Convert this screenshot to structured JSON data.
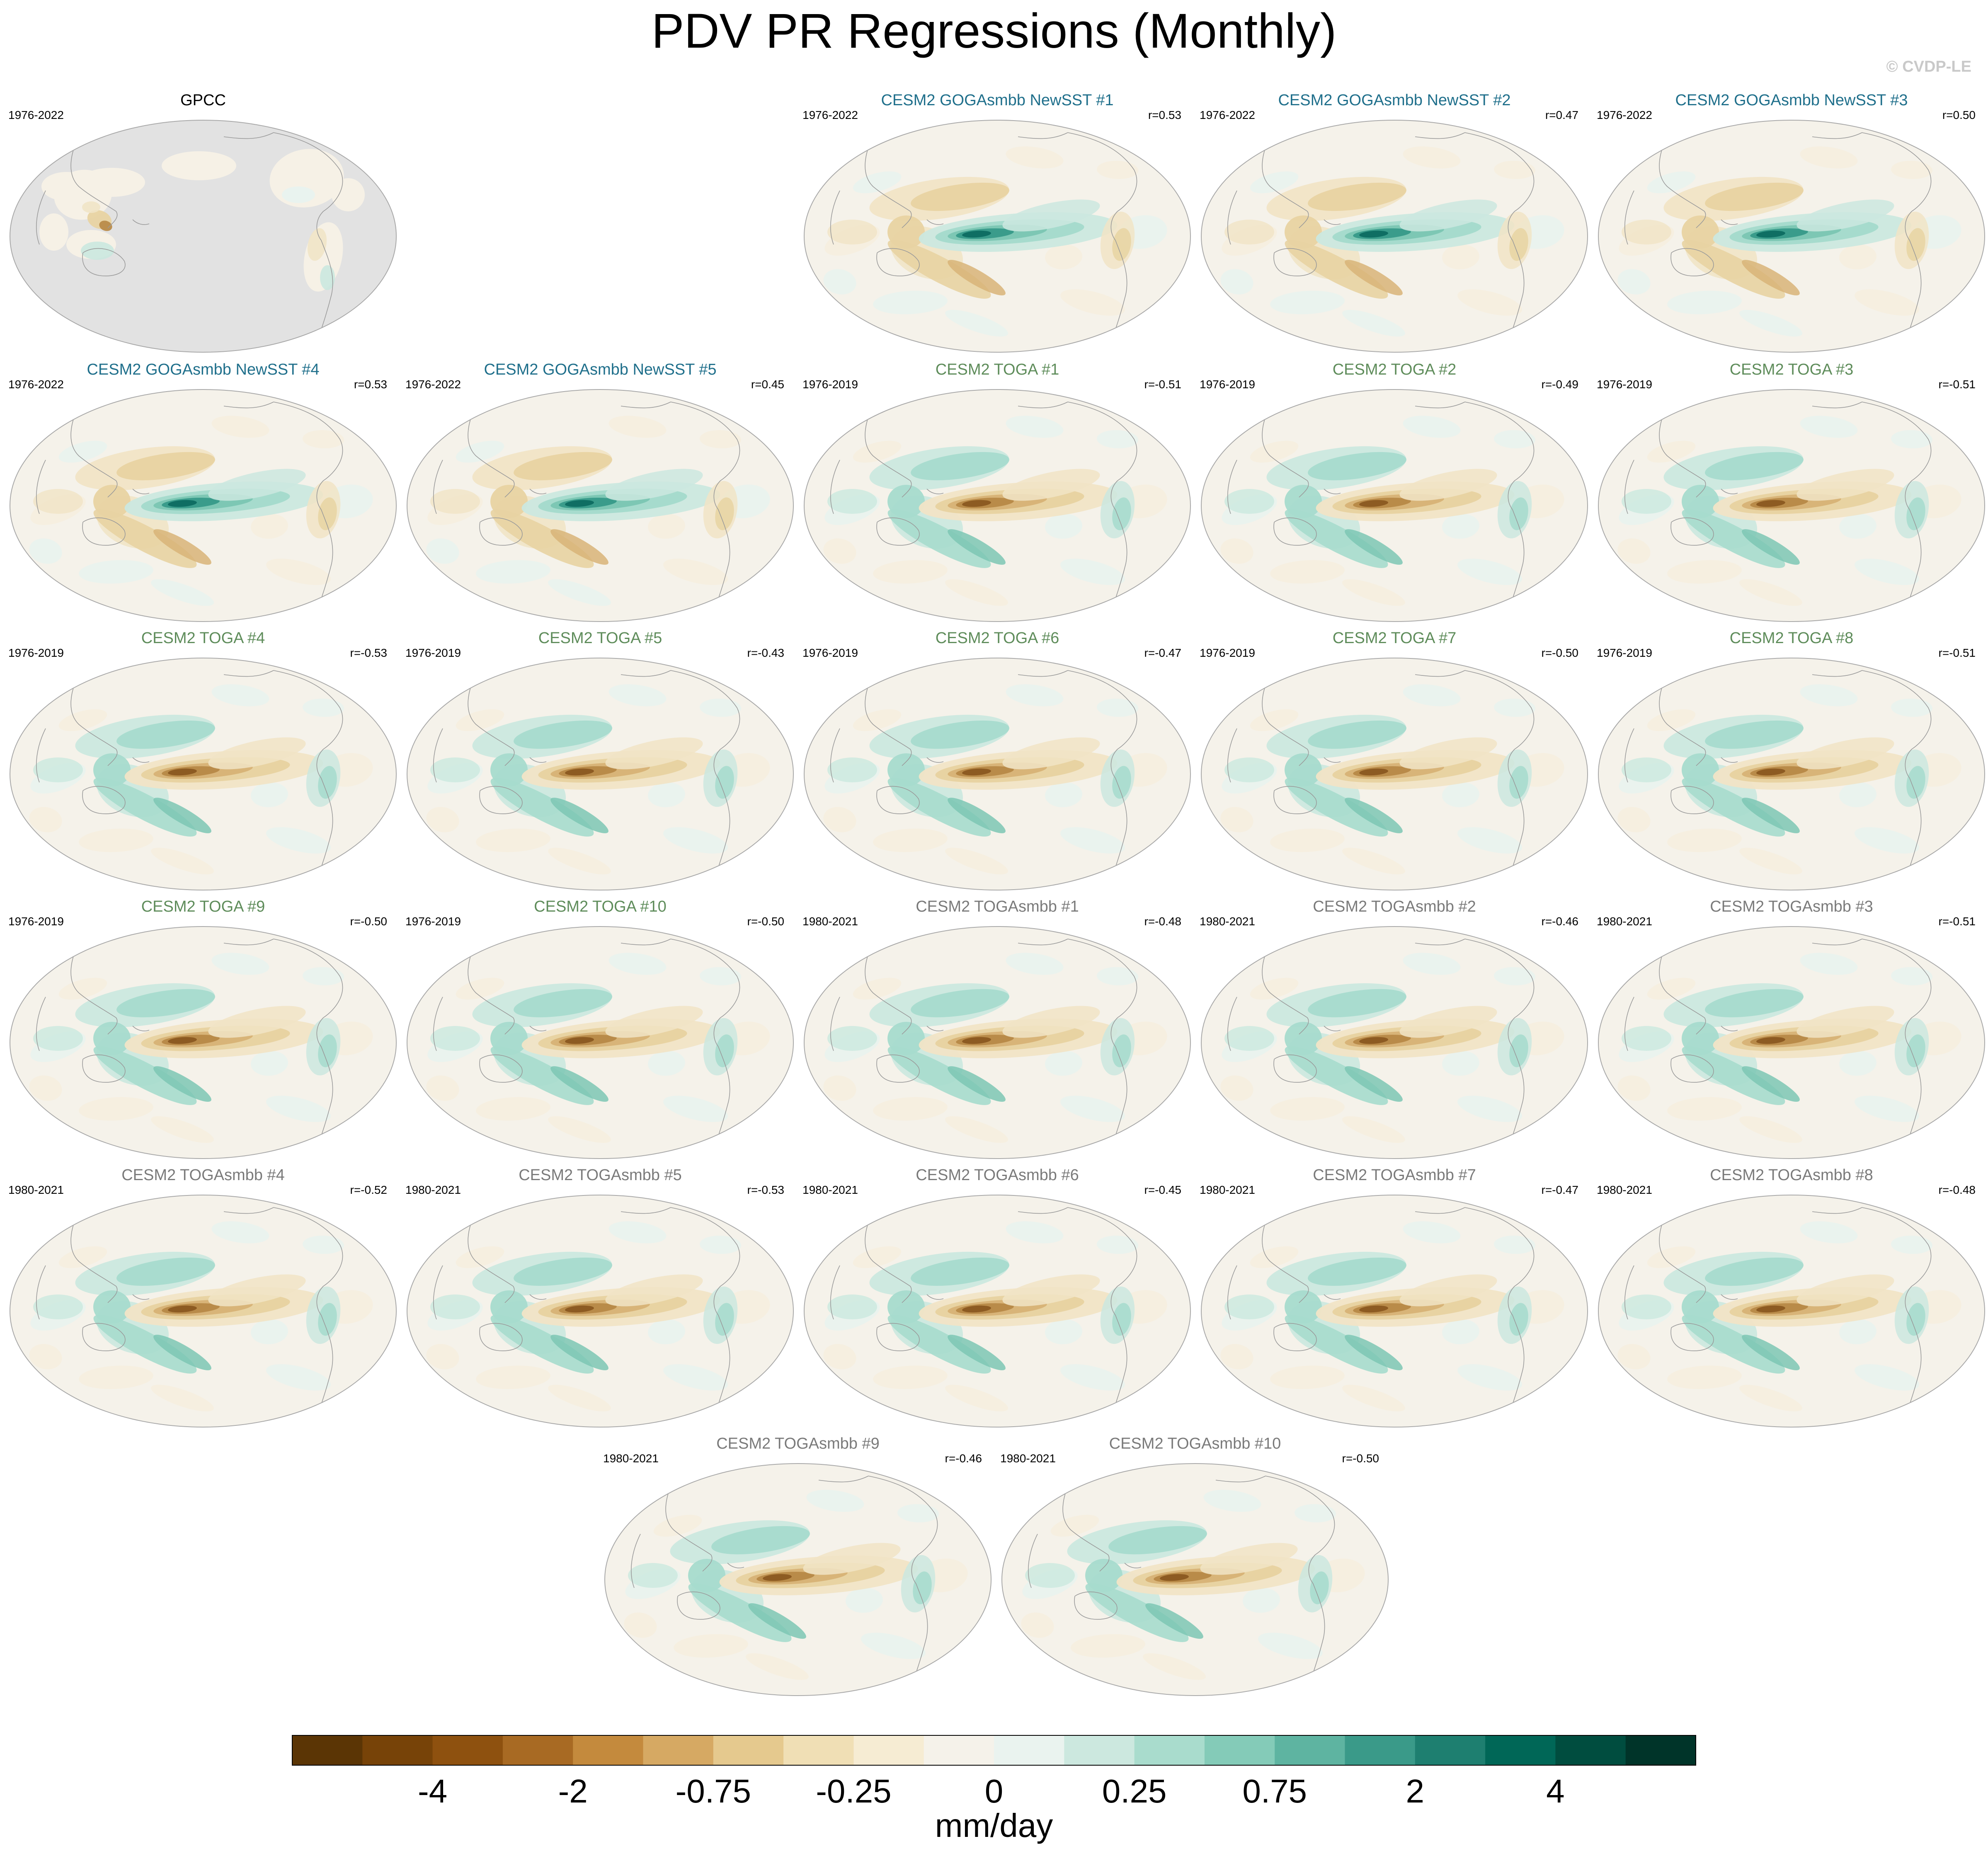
{
  "title": "PDV PR Regressions (Monthly)",
  "watermark": "© CVDP-LE",
  "panels": [
    {
      "label": "GPCC",
      "years": "1976-2022",
      "r": "",
      "group": "obs",
      "pattern": "obs"
    },
    {
      "label": "CESM2 GOGAsmbb NewSST #1",
      "years": "1976-2022",
      "r": "r=0.53",
      "group": "goga",
      "pattern": "pos"
    },
    {
      "label": "CESM2 GOGAsmbb NewSST #2",
      "years": "1976-2022",
      "r": "r=0.47",
      "group": "goga",
      "pattern": "pos"
    },
    {
      "label": "CESM2 GOGAsmbb NewSST #3",
      "years": "1976-2022",
      "r": "r=0.50",
      "group": "goga",
      "pattern": "pos"
    },
    {
      "label": "CESM2 GOGAsmbb NewSST #4",
      "years": "1976-2022",
      "r": "r=0.53",
      "group": "goga",
      "pattern": "pos"
    },
    {
      "label": "CESM2 GOGAsmbb NewSST #5",
      "years": "1976-2022",
      "r": "r=0.45",
      "group": "goga",
      "pattern": "pos"
    },
    {
      "label": "CESM2 TOGA #1",
      "years": "1976-2019",
      "r": "r=-0.51",
      "group": "toga",
      "pattern": "neg"
    },
    {
      "label": "CESM2 TOGA #2",
      "years": "1976-2019",
      "r": "r=-0.49",
      "group": "toga",
      "pattern": "neg"
    },
    {
      "label": "CESM2 TOGA #3",
      "years": "1976-2019",
      "r": "r=-0.51",
      "group": "toga",
      "pattern": "neg"
    },
    {
      "label": "CESM2 TOGA #4",
      "years": "1976-2019",
      "r": "r=-0.53",
      "group": "toga",
      "pattern": "neg"
    },
    {
      "label": "CESM2 TOGA #5",
      "years": "1976-2019",
      "r": "r=-0.43",
      "group": "toga",
      "pattern": "neg"
    },
    {
      "label": "CESM2 TOGA #6",
      "years": "1976-2019",
      "r": "r=-0.47",
      "group": "toga",
      "pattern": "neg"
    },
    {
      "label": "CESM2 TOGA #7",
      "years": "1976-2019",
      "r": "r=-0.50",
      "group": "toga",
      "pattern": "neg"
    },
    {
      "label": "CESM2 TOGA #8",
      "years": "1976-2019",
      "r": "r=-0.51",
      "group": "toga",
      "pattern": "neg"
    },
    {
      "label": "CESM2 TOGA #9",
      "years": "1976-2019",
      "r": "r=-0.50",
      "group": "toga",
      "pattern": "neg"
    },
    {
      "label": "CESM2 TOGA #10",
      "years": "1976-2019",
      "r": "r=-0.50",
      "group": "toga",
      "pattern": "neg"
    },
    {
      "label": "CESM2 TOGAsmbb #1",
      "years": "1980-2021",
      "r": "r=-0.48",
      "group": "togasmbb",
      "pattern": "neg"
    },
    {
      "label": "CESM2 TOGAsmbb #2",
      "years": "1980-2021",
      "r": "r=-0.46",
      "group": "togasmbb",
      "pattern": "neg"
    },
    {
      "label": "CESM2 TOGAsmbb #3",
      "years": "1980-2021",
      "r": "r=-0.51",
      "group": "togasmbb",
      "pattern": "neg"
    },
    {
      "label": "CESM2 TOGAsmbb #4",
      "years": "1980-2021",
      "r": "r=-0.52",
      "group": "togasmbb",
      "pattern": "neg"
    },
    {
      "label": "CESM2 TOGAsmbb #5",
      "years": "1980-2021",
      "r": "r=-0.53",
      "group": "togasmbb",
      "pattern": "neg"
    },
    {
      "label": "CESM2 TOGAsmbb #6",
      "years": "1980-2021",
      "r": "r=-0.45",
      "group": "togasmbb",
      "pattern": "neg"
    },
    {
      "label": "CESM2 TOGAsmbb #7",
      "years": "1980-2021",
      "r": "r=-0.47",
      "group": "togasmbb",
      "pattern": "neg"
    },
    {
      "label": "CESM2 TOGAsmbb #8",
      "years": "1980-2021",
      "r": "r=-0.48",
      "group": "togasmbb",
      "pattern": "neg"
    },
    {
      "label": "CESM2 TOGAsmbb #9",
      "years": "1980-2021",
      "r": "r=-0.46",
      "group": "togasmbb",
      "pattern": "neg"
    },
    {
      "label": "CESM2 TOGAsmbb #10",
      "years": "1980-2021",
      "r": "r=-0.50",
      "group": "togasmbb",
      "pattern": "neg"
    }
  ],
  "group_colors": {
    "obs": "#000000",
    "goga": "#1f6f8b",
    "toga": "#5e8c5a",
    "togasmbb": "#7a7a7a"
  },
  "colors": {
    "missing": "#e2e2e2",
    "coast": "#9a9a9a",
    "wet_1": "#e8f3ef",
    "wet_2": "#cbe8df",
    "wet_3": "#a6dbcd",
    "wet_4": "#7dc7b4",
    "wet_5": "#3a9c8b",
    "wet_6": "#0f6e63",
    "dry_1": "#f6eede",
    "dry_2": "#f1e4c6",
    "dry_3": "#e8d3a2",
    "dry_4": "#d8b478",
    "dry_5": "#b98b49",
    "dry_6": "#8d5b22"
  },
  "colorbar": {
    "label": "mm/day",
    "colors": [
      "#5b3505",
      "#774308",
      "#8e510f",
      "#a86a23",
      "#c48a3d",
      "#d6a963",
      "#e5c98e",
      "#f0dfb5",
      "#f6ecd3",
      "#f5f2ea",
      "#eaf3ef",
      "#cce8df",
      "#a9dccd",
      "#84cbb8",
      "#5eb4a1",
      "#3a9a89",
      "#1e7f70",
      "#006757",
      "#004d3f",
      "#003429"
    ],
    "tick_labels": [
      "-4",
      "-2",
      "-0.75",
      "-0.25",
      "0",
      "0.25",
      "0.75",
      "2",
      "4"
    ],
    "tick_boundary_index": [
      2,
      4,
      6,
      8,
      10,
      12,
      14,
      16,
      18
    ]
  }
}
